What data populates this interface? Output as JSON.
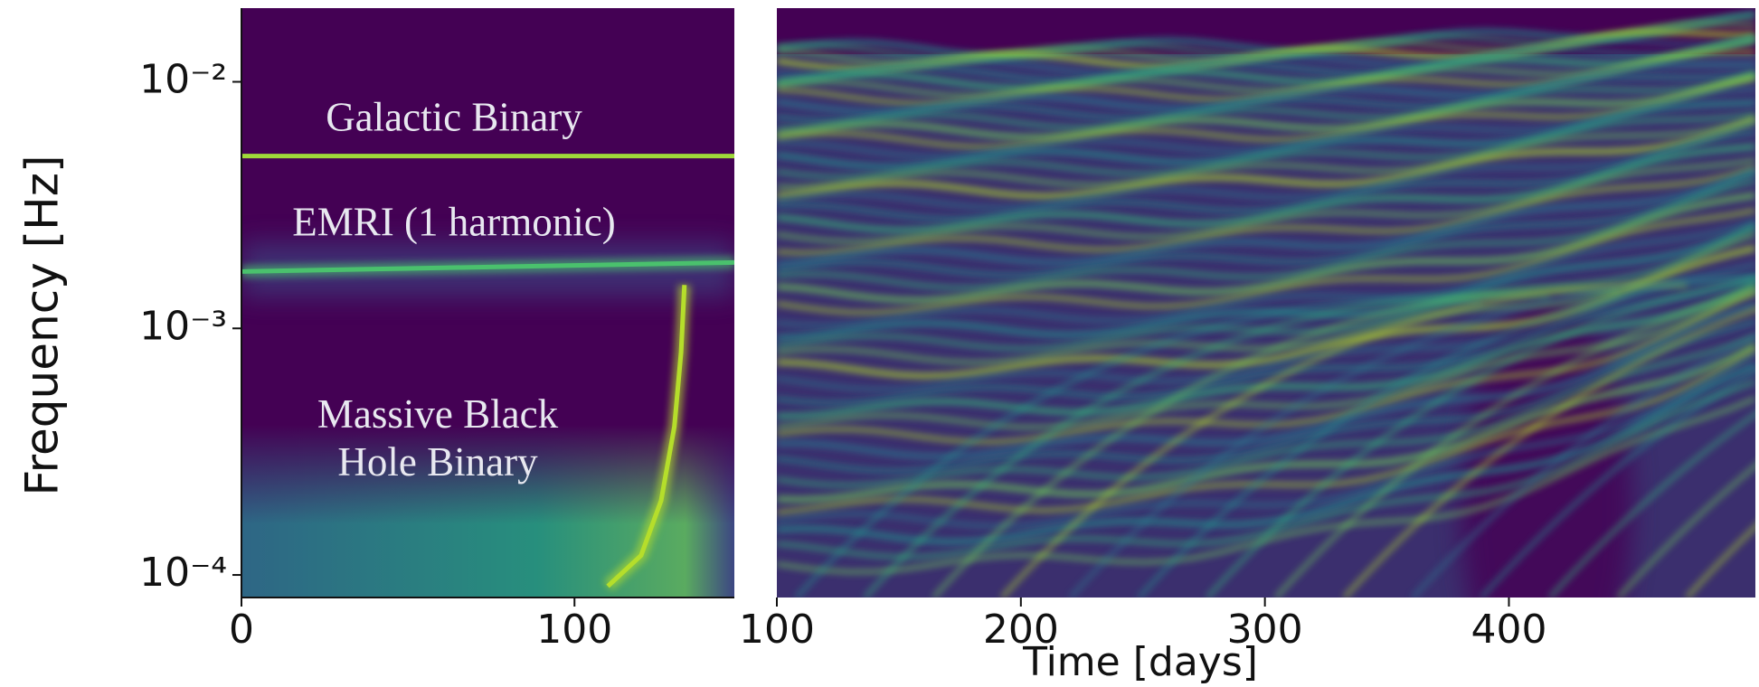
{
  "chart_data": [
    {
      "type": "spectrogram",
      "ylabel": "Frequency [Hz]",
      "yscale": "log",
      "xlim": [
        0,
        148
      ],
      "xticks": [
        0,
        100
      ],
      "ylim": [
        8.1e-05,
        0.0199
      ],
      "yticks": [
        {
          "value": 0.01,
          "label": "10⁻²"
        },
        {
          "value": 0.001,
          "label": "10⁻³"
        },
        {
          "value": 0.0001,
          "label": "10⁻⁴"
        }
      ],
      "series": [
        {
          "name": "Galactic Binary",
          "color": "#9fda3a",
          "x": [
            0,
            148
          ],
          "values": [
            0.005,
            0.005
          ]
        },
        {
          "name": "EMRI (1 harmonic)",
          "color": "#4ac16d",
          "x": [
            0,
            50,
            100,
            148
          ],
          "values": [
            0.0017,
            0.00175,
            0.0018,
            0.00185
          ]
        },
        {
          "name": "Massive Black Hole Binary",
          "color": "#b5de2b",
          "x": [
            110,
            120,
            126,
            130,
            132,
            133
          ],
          "values": [
            9e-05,
            0.00012,
            0.0002,
            0.0004,
            0.0008,
            0.0015
          ]
        }
      ]
    },
    {
      "type": "spectrogram",
      "xlabel": "Time [days]",
      "yscale": "log",
      "xlim": [
        100,
        501
      ],
      "xticks": [
        100,
        200,
        300,
        400
      ],
      "ylim": [
        8.1e-05,
        0.0199
      ]
    }
  ]
}
